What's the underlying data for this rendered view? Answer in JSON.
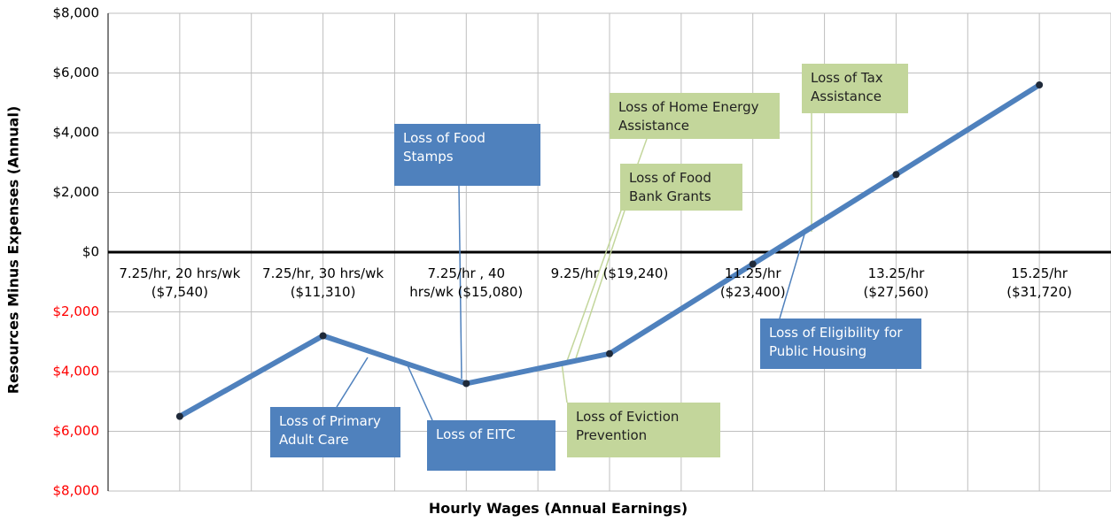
{
  "chart_data": {
    "type": "line",
    "y_axis_label": "Resources Minus Expenses (Annual)",
    "x_axis_label": "Hourly Wages (Annual Earnings)",
    "categories": [
      "7.25/hr, 20 hrs/wk ($7,540)",
      "7.25/hr, 30 hrs/wk ($11,310)",
      "7.25/hr , 40 hrs/wk ($15,080)",
      "9.25/hr ($19,240)",
      "11.25/hr ($23,400)",
      "13.25/hr ($27,560)",
      "15.25/hr ($31,720)"
    ],
    "series": [
      {
        "name": "Resources Minus Expenses",
        "color": "#4f81bd",
        "values": [
          -5500,
          -2800,
          -4400,
          -3400,
          -400,
          2600,
          5600
        ]
      }
    ],
    "ylim": [
      -8000,
      8000
    ],
    "yticks": [
      {
        "value": -8000,
        "label": "$8,000"
      },
      {
        "value": -6000,
        "label": "$6,000"
      },
      {
        "value": -4000,
        "label": "$4,000"
      },
      {
        "value": -2000,
        "label": "$2,000"
      },
      {
        "value": 0,
        "label": "$0"
      },
      {
        "value": 2000,
        "label": "$2,000"
      },
      {
        "value": 4000,
        "label": "$4,000"
      },
      {
        "value": 6000,
        "label": "$6,000"
      },
      {
        "value": 8000,
        "label": "$8,000"
      }
    ],
    "negative_tick_color": "#ff0000",
    "grid": true,
    "annotations": [
      {
        "text": "Loss of Primary Adult Care",
        "color": "#4f81bd"
      },
      {
        "text": "Loss of EITC",
        "color": "#4f81bd"
      },
      {
        "text": "Loss of Food Stamps",
        "color": "#4f81bd"
      },
      {
        "text": "Loss of Home Energy Assistance",
        "color": "#c3d69b"
      },
      {
        "text": "Loss of Food Bank Grants",
        "color": "#c3d69b"
      },
      {
        "text": "Loss of Eviction Prevention",
        "color": "#c3d69b"
      },
      {
        "text": "Loss of Tax Assistance",
        "color": "#c3d69b"
      },
      {
        "text": "Loss of Eligibility for Public Housing",
        "color": "#4f81bd"
      }
    ]
  }
}
